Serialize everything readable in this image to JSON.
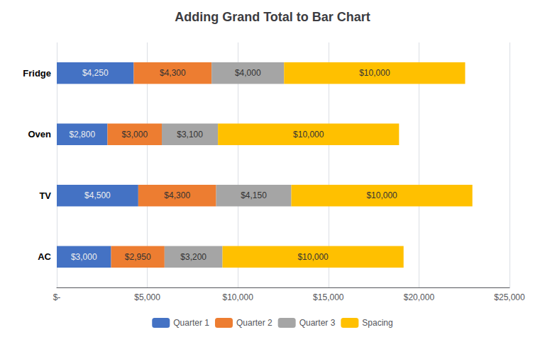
{
  "chart_data": {
    "type": "bar",
    "orientation": "horizontal",
    "stacked": true,
    "title": "Adding Grand Total to Bar Chart",
    "categories": [
      "AC",
      "TV",
      "Oven",
      "Fridge"
    ],
    "series": [
      {
        "name": "Quarter 1",
        "color": "#4472C4",
        "values": [
          3000,
          4500,
          2800,
          4250
        ],
        "value_labels": [
          "$3,000",
          "$4,500",
          "$2,800",
          "$4,250"
        ]
      },
      {
        "name": "Quarter 2",
        "color": "#ED7D31",
        "values": [
          2950,
          4300,
          3000,
          4300
        ],
        "value_labels": [
          "$2,950",
          "$4,300",
          "$3,000",
          "$4,300"
        ]
      },
      {
        "name": "Quarter 3",
        "color": "#A5A5A5",
        "values": [
          3200,
          4150,
          3100,
          4000
        ],
        "value_labels": [
          "$3,200",
          "$4,150",
          "$3,100",
          "$4,000"
        ]
      },
      {
        "name": "Spacing",
        "color": "#FFC000",
        "values": [
          10000,
          10000,
          10000,
          10000
        ],
        "value_labels": [
          "$10,000",
          "$10,000",
          "$10,000",
          "$10,000"
        ]
      }
    ],
    "xlim": [
      0,
      25000
    ],
    "xticks": [
      {
        "value": 0,
        "label": "$-"
      },
      {
        "value": 5000,
        "label": "$5,000"
      },
      {
        "value": 10000,
        "label": "$10,000"
      },
      {
        "value": 15000,
        "label": "$15,000"
      },
      {
        "value": 20000,
        "label": "$20,000"
      },
      {
        "value": 25000,
        "label": "$25,000"
      }
    ],
    "grid": true,
    "data_labels": true,
    "legend": "bottom"
  }
}
